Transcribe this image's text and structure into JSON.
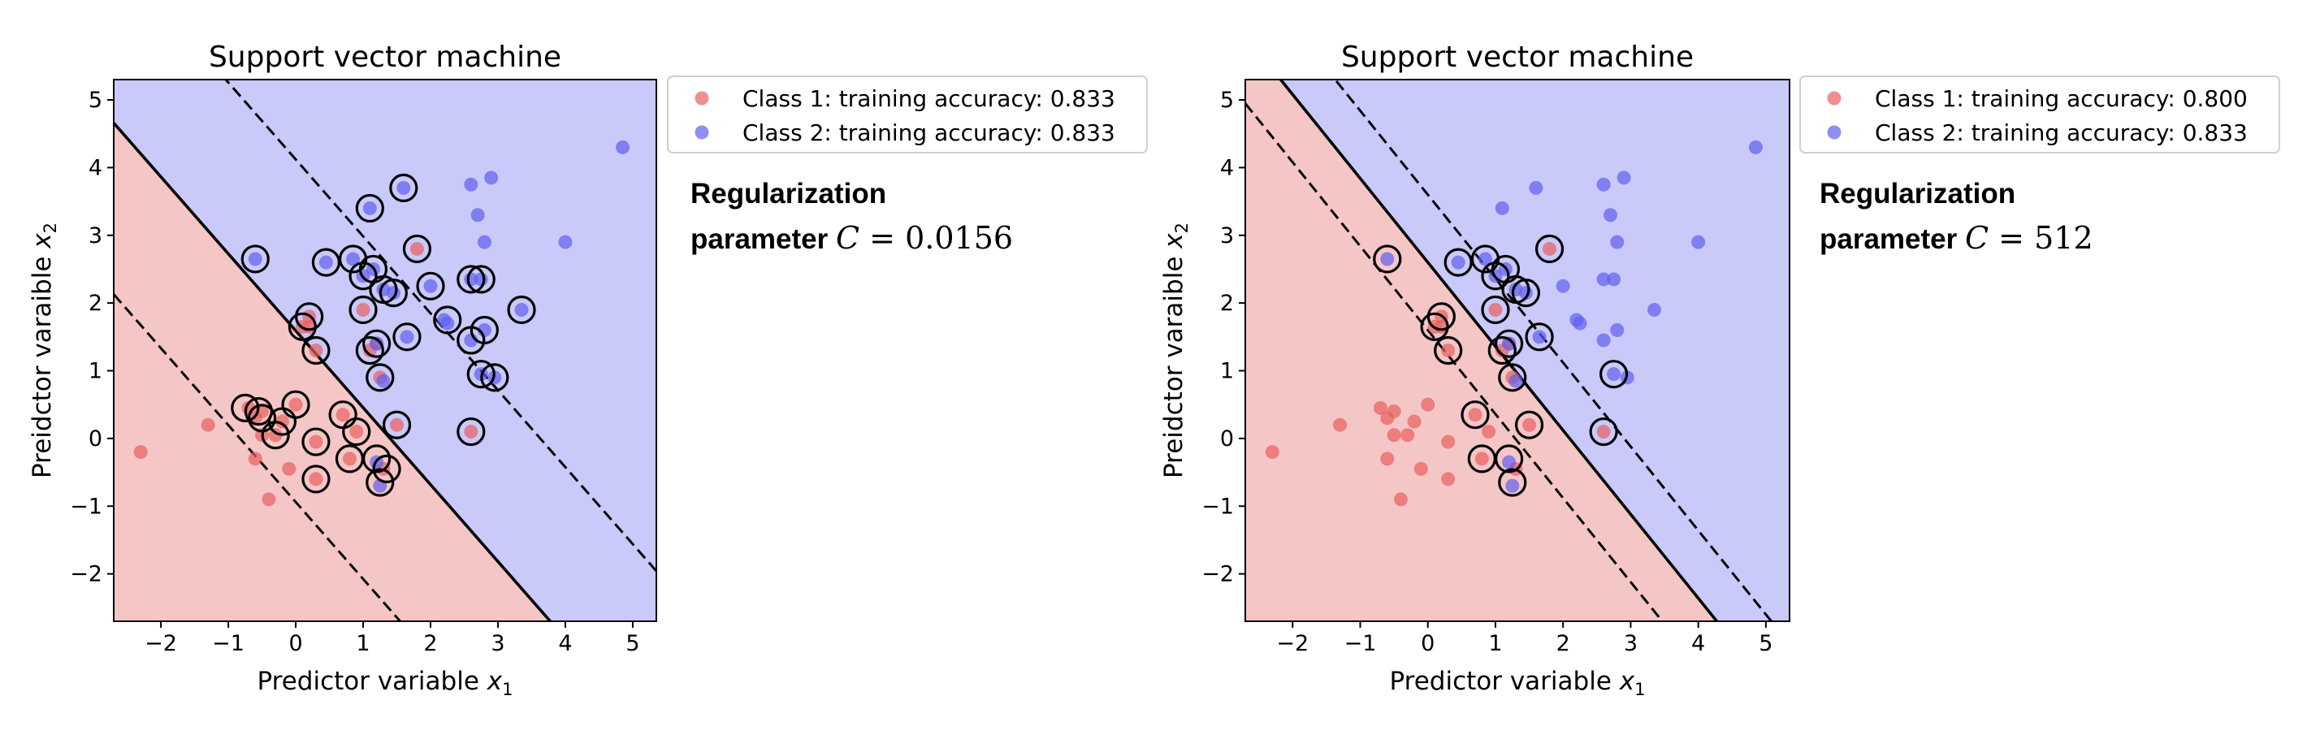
{
  "chart_data": [
    {
      "type": "scatter",
      "title": "Support vector machine",
      "xlabel": "Predictor variable x",
      "xlabel_sub": "1",
      "ylabel": "Preidctor varaible x",
      "ylabel_sub": "2",
      "xlim": [
        -2.7,
        5.35
      ],
      "ylim": [
        -2.7,
        5.3
      ],
      "xticks": [
        -2,
        -1,
        0,
        1,
        2,
        3,
        4,
        5
      ],
      "yticks": [
        -2,
        -1,
        0,
        1,
        2,
        3,
        4,
        5
      ],
      "grid": false,
      "legend_position": "outside-top-right",
      "regions": {
        "class1_color": "#f5c6c6",
        "class2_color": "#c9c9fa"
      },
      "boundary": {
        "normal": [
          0.75,
          0.66
        ],
        "intercept": -1.05,
        "margin": 1.67
      },
      "annotation": {
        "line1": "Regularization",
        "line2_prefix": "parameter",
        "symbol": "C",
        "eq": "=",
        "value": "0.0156"
      },
      "series": [
        {
          "name": "Class 1: training accuracy: 0.833",
          "color": "#e8605f",
          "points": [
            [
              -2.3,
              -0.2
            ],
            [
              -1.3,
              0.2
            ],
            [
              -0.7,
              0.45
            ],
            [
              -0.5,
              0.4
            ],
            [
              -0.6,
              0.3
            ],
            [
              -0.5,
              0.05
            ],
            [
              -0.6,
              -0.3
            ],
            [
              -0.4,
              -0.9
            ],
            [
              -0.2,
              0.25
            ],
            [
              -0.1,
              -0.45
            ],
            [
              0,
              0.5
            ],
            [
              -0.3,
              0.05
            ],
            [
              0.1,
              1.65
            ],
            [
              0.2,
              1.8
            ],
            [
              0.2,
              1.65
            ],
            [
              0.3,
              1.3
            ],
            [
              0.3,
              -0.05
            ],
            [
              0.3,
              -0.6
            ],
            [
              0.7,
              0.35
            ],
            [
              0.8,
              -0.3
            ],
            [
              0.9,
              0.1
            ],
            [
              1,
              1.9
            ],
            [
              1.1,
              1.3
            ],
            [
              1.2,
              1.4
            ],
            [
              1.25,
              0.9
            ],
            [
              1.3,
              -0.45
            ],
            [
              1.5,
              0.2
            ],
            [
              1.8,
              2.8
            ],
            [
              2.6,
              0.1
            ]
          ]
        },
        {
          "name": "Class 2: training accuracy: 0.833",
          "color": "#6060ee",
          "points": [
            [
              -0.6,
              2.65
            ],
            [
              0.45,
              2.6
            ],
            [
              0.85,
              2.65
            ],
            [
              1,
              2.4
            ],
            [
              1.1,
              3.4
            ],
            [
              1.15,
              2.5
            ],
            [
              1.3,
              2.2
            ],
            [
              1.45,
              2.15
            ],
            [
              1.6,
              3.7
            ],
            [
              1.65,
              1.5
            ],
            [
              2,
              2.25
            ],
            [
              2.2,
              1.75
            ],
            [
              2.25,
              1.7
            ],
            [
              2.6,
              1.45
            ],
            [
              2.6,
              2.35
            ],
            [
              2.6,
              3.75
            ],
            [
              2.7,
              3.3
            ],
            [
              2.75,
              0.95
            ],
            [
              2.75,
              2.35
            ],
            [
              2.8,
              1.6
            ],
            [
              2.8,
              2.9
            ],
            [
              2.9,
              3.85
            ],
            [
              2.95,
              0.9
            ],
            [
              3.35,
              1.9
            ],
            [
              4,
              2.9
            ],
            [
              4.85,
              4.3
            ],
            [
              1.2,
              -0.35
            ],
            [
              1.25,
              -0.7
            ],
            [
              1.3,
              0.85
            ],
            [
              1.2,
              1.4
            ]
          ]
        }
      ],
      "support_vectors": [
        [
          -0.6,
          2.65
        ],
        [
          0.45,
          2.6
        ],
        [
          0.85,
          2.65
        ],
        [
          1,
          2.4
        ],
        [
          1.1,
          3.4
        ],
        [
          1.15,
          2.5
        ],
        [
          1.3,
          2.2
        ],
        [
          1.45,
          2.15
        ],
        [
          1.6,
          3.7
        ],
        [
          1.65,
          1.5
        ],
        [
          1.8,
          2.8
        ],
        [
          2,
          2.25
        ],
        [
          2.25,
          1.75
        ],
        [
          2.6,
          1.45
        ],
        [
          2.6,
          2.35
        ],
        [
          2.75,
          2.35
        ],
        [
          2.8,
          1.6
        ],
        [
          2.75,
          0.95
        ],
        [
          2.95,
          0.9
        ],
        [
          3.35,
          1.9
        ],
        [
          1,
          1.9
        ],
        [
          0.1,
          1.65
        ],
        [
          0.2,
          1.8
        ],
        [
          0.3,
          1.3
        ],
        [
          1.1,
          1.3
        ],
        [
          1.2,
          1.4
        ],
        [
          1.25,
          0.9
        ],
        [
          1.5,
          0.2
        ],
        [
          -0.75,
          0.45
        ],
        [
          -0.55,
          0.4
        ],
        [
          -0.5,
          0.3
        ],
        [
          -0.2,
          0.25
        ],
        [
          -0.3,
          0.05
        ],
        [
          0,
          0.5
        ],
        [
          0.3,
          -0.05
        ],
        [
          0.3,
          -0.6
        ],
        [
          0.7,
          0.35
        ],
        [
          0.8,
          -0.3
        ],
        [
          0.9,
          0.1
        ],
        [
          1.2,
          -0.3
        ],
        [
          1.25,
          -0.65
        ],
        [
          1.35,
          -0.45
        ],
        [
          2.6,
          0.1
        ]
      ]
    },
    {
      "type": "scatter",
      "title": "Support vector machine",
      "xlabel": "Predictor variable x",
      "xlabel_sub": "1",
      "ylabel": "Preidctor varaible x",
      "ylabel_sub": "2",
      "xlim": [
        -2.7,
        5.35
      ],
      "ylim": [
        -2.7,
        5.3
      ],
      "xticks": [
        -2,
        -1,
        0,
        1,
        2,
        3,
        4,
        5
      ],
      "yticks": [
        -2,
        -1,
        0,
        1,
        2,
        3,
        4,
        5
      ],
      "grid": false,
      "legend_position": "outside-top-right",
      "regions": {
        "class1_color": "#f5c6c6",
        "class2_color": "#c9c9fa"
      },
      "boundary": {
        "normal": [
          1.24,
          1.0
        ],
        "intercept": -2.6,
        "margin": 1.0
      },
      "annotation": {
        "line1": "Regularization",
        "line2_prefix": "parameter",
        "symbol": "C",
        "eq": "=",
        "value": "512"
      },
      "series": [
        {
          "name": "Class 1: training accuracy: 0.800",
          "color": "#e8605f",
          "points": [
            [
              -2.3,
              -0.2
            ],
            [
              -1.3,
              0.2
            ],
            [
              -0.7,
              0.45
            ],
            [
              -0.5,
              0.4
            ],
            [
              -0.6,
              0.3
            ],
            [
              -0.5,
              0.05
            ],
            [
              -0.6,
              -0.3
            ],
            [
              -0.4,
              -0.9
            ],
            [
              -0.2,
              0.25
            ],
            [
              -0.1,
              -0.45
            ],
            [
              0,
              0.5
            ],
            [
              -0.3,
              0.05
            ],
            [
              0.1,
              1.65
            ],
            [
              0.2,
              1.8
            ],
            [
              0.2,
              1.65
            ],
            [
              0.3,
              1.3
            ],
            [
              0.3,
              -0.05
            ],
            [
              0.3,
              -0.6
            ],
            [
              0.7,
              0.35
            ],
            [
              0.8,
              -0.3
            ],
            [
              0.9,
              0.1
            ],
            [
              1,
              1.9
            ],
            [
              1.1,
              1.3
            ],
            [
              1.2,
              1.4
            ],
            [
              1.25,
              0.9
            ],
            [
              1.3,
              -0.45
            ],
            [
              1.5,
              0.2
            ],
            [
              1.8,
              2.8
            ],
            [
              2.6,
              0.1
            ]
          ]
        },
        {
          "name": "Class 2: training accuracy: 0.833",
          "color": "#6060ee",
          "points": [
            [
              -0.6,
              2.65
            ],
            [
              0.45,
              2.6
            ],
            [
              0.85,
              2.65
            ],
            [
              1,
              2.4
            ],
            [
              1.1,
              3.4
            ],
            [
              1.15,
              2.5
            ],
            [
              1.3,
              2.2
            ],
            [
              1.45,
              2.15
            ],
            [
              1.6,
              3.7
            ],
            [
              1.65,
              1.5
            ],
            [
              2,
              2.25
            ],
            [
              2.2,
              1.75
            ],
            [
              2.25,
              1.7
            ],
            [
              2.6,
              1.45
            ],
            [
              2.6,
              2.35
            ],
            [
              2.6,
              3.75
            ],
            [
              2.7,
              3.3
            ],
            [
              2.75,
              0.95
            ],
            [
              2.75,
              2.35
            ],
            [
              2.8,
              1.6
            ],
            [
              2.8,
              2.9
            ],
            [
              2.9,
              3.85
            ],
            [
              2.95,
              0.9
            ],
            [
              3.35,
              1.9
            ],
            [
              4,
              2.9
            ],
            [
              4.85,
              4.3
            ],
            [
              1.2,
              -0.35
            ],
            [
              1.25,
              -0.7
            ],
            [
              1.3,
              0.85
            ],
            [
              1.2,
              1.4
            ]
          ]
        }
      ],
      "support_vectors": [
        [
          -0.6,
          2.65
        ],
        [
          0.45,
          2.6
        ],
        [
          0.85,
          2.65
        ],
        [
          1,
          2.4
        ],
        [
          1.15,
          2.5
        ],
        [
          1.3,
          2.2
        ],
        [
          1.45,
          2.15
        ],
        [
          1.65,
          1.5
        ],
        [
          1.8,
          2.8
        ],
        [
          1,
          1.9
        ],
        [
          0.1,
          1.65
        ],
        [
          0.2,
          1.8
        ],
        [
          0.3,
          1.3
        ],
        [
          1.1,
          1.3
        ],
        [
          1.2,
          1.4
        ],
        [
          1.25,
          0.9
        ],
        [
          1.5,
          0.2
        ],
        [
          0.7,
          0.35
        ],
        [
          0.8,
          -0.3
        ],
        [
          1.2,
          -0.3
        ],
        [
          1.25,
          -0.65
        ],
        [
          2.6,
          0.1
        ],
        [
          2.75,
          0.95
        ]
      ]
    }
  ]
}
